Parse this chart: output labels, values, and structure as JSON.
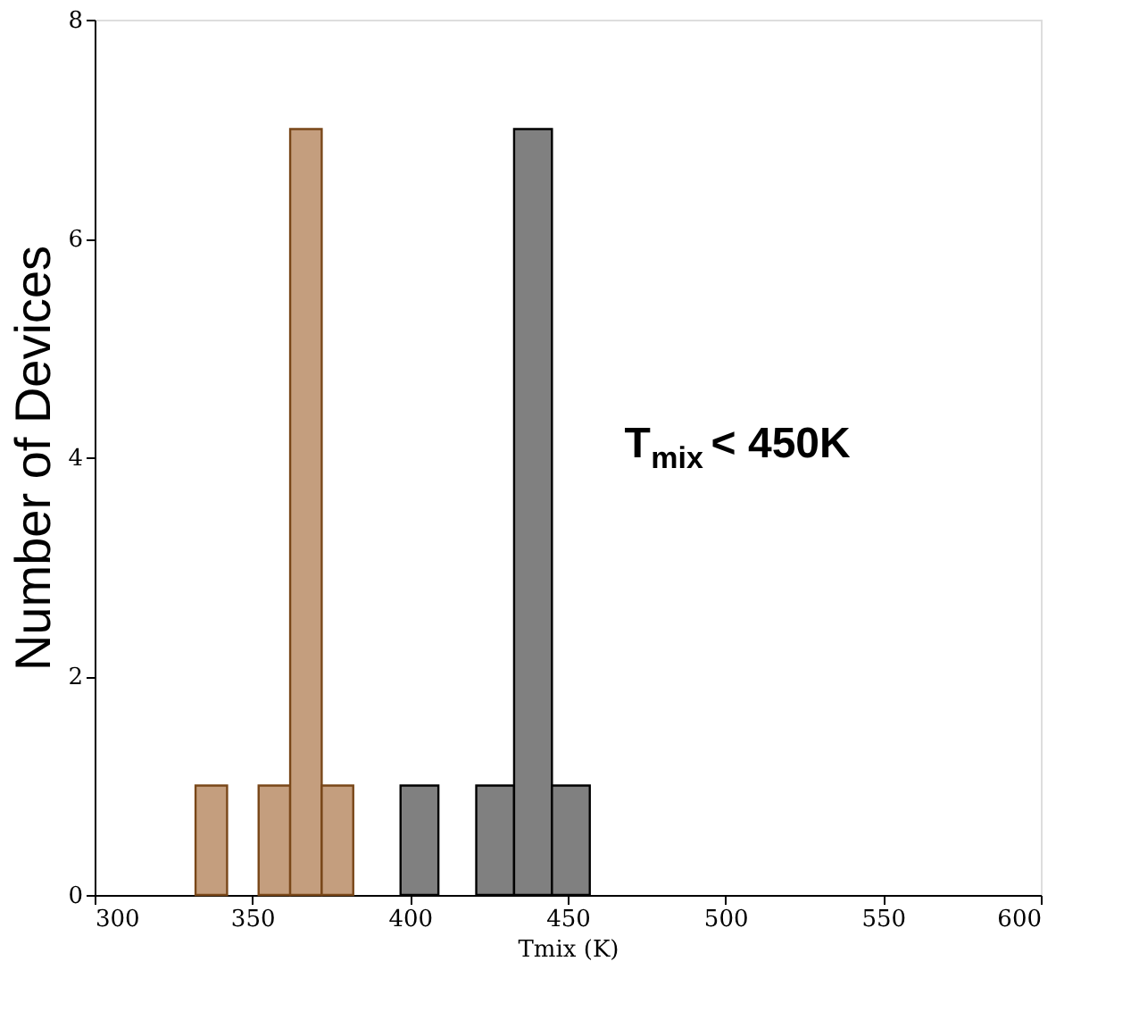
{
  "chart_data": {
    "type": "histogram",
    "xlabel": "Tmix (K)",
    "ylabel": "Number of Devices",
    "xlim": [
      300,
      600
    ],
    "xticks": [
      300,
      350,
      400,
      450,
      500,
      550,
      600
    ],
    "ylim": [
      0,
      8
    ],
    "yticks": [
      0,
      2,
      4,
      6,
      8
    ],
    "grid": false,
    "bins": [
      332,
      342,
      352,
      362,
      372,
      382,
      397,
      409,
      421,
      433,
      445,
      457
    ],
    "series": [
      {
        "color": "#c49e7e",
        "values": [
          1,
          0,
          1,
          7,
          1,
          0,
          0,
          0,
          0,
          0,
          0
        ]
      },
      {
        "color": "#808080",
        "values": [
          0,
          0,
          0,
          0,
          0,
          0,
          1,
          0,
          1,
          7,
          1
        ]
      }
    ],
    "annotations": [
      "T$_{mix}$ < 450K"
    ]
  }
}
